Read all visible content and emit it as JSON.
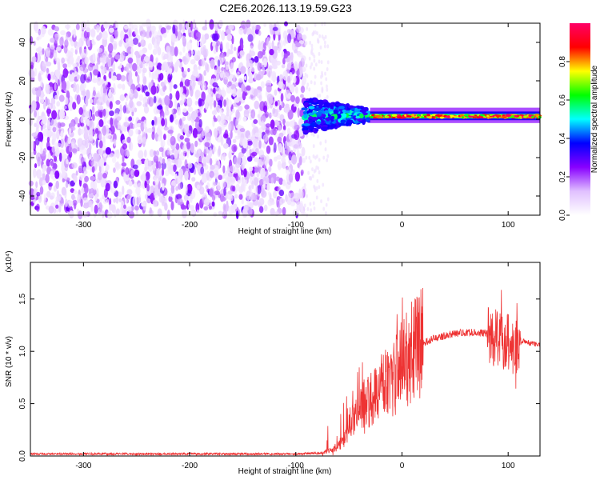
{
  "title": "C2E6.2026.113.19.59.G23",
  "chart_data": [
    {
      "type": "heatmap",
      "xlabel": "Height of straight line (km)",
      "ylabel": "Frequency (Hz)",
      "xlim": [
        -350,
        130
      ],
      "ylim": [
        -50,
        50
      ],
      "xticks": [
        -300,
        -200,
        -100,
        0,
        100
      ],
      "yticks": [
        -40,
        -20,
        0,
        20,
        40
      ],
      "colorbar": {
        "label": "Normalized spectral amplitude",
        "range": [
          0.0,
          1.0
        ],
        "ticks": [
          0.0,
          0.2,
          0.4,
          0.6,
          0.8
        ],
        "tick_labels": [
          "0.0",
          "0.2",
          "0.4",
          "0.6",
          "0.8"
        ],
        "colormap": [
          "#ffffff",
          "#e0c0ff",
          "#8800ff",
          "#0000ff",
          "#00ffff",
          "#00ff00",
          "#ffff00",
          "#ff0000",
          "#ff0066"
        ]
      },
      "regions": [
        {
          "x": [
            -350,
            -92
          ],
          "freq": [
            -50,
            50
          ],
          "amplitude": [
            0.05,
            0.2
          ],
          "pattern": "noise"
        },
        {
          "x": [
            -92,
            -30
          ],
          "freq": [
            -10,
            10
          ],
          "amplitude": [
            0.3,
            0.65
          ],
          "pattern": "broadening signal"
        },
        {
          "x": [
            -30,
            130
          ],
          "freq": [
            -2,
            6
          ],
          "center_freq": 1.5,
          "amplitude": [
            0.6,
            1.0
          ],
          "pattern": "narrow signal"
        }
      ]
    },
    {
      "type": "line",
      "xlabel": "Height of straight line (km)",
      "ylabel": "SNR (10 * v/v)",
      "multiplier": "(x10⁴)",
      "xlim": [
        -350,
        130
      ],
      "ylim": [
        0,
        1.85
      ],
      "xticks": [
        -300,
        -200,
        -100,
        0,
        100
      ],
      "yticks": [
        0.0,
        0.5,
        1.0,
        1.5
      ],
      "ytick_labels": [
        "0.0",
        "0.5",
        "1.0",
        "1.5"
      ],
      "color": "#ee3333",
      "series": [
        {
          "x": [
            -350,
            -250,
            -150,
            -100,
            -75,
            -65,
            -55,
            -50,
            -45,
            -40,
            -35,
            -30,
            -25,
            -20,
            -15,
            -10,
            -5,
            0,
            5,
            10,
            15,
            20,
            30,
            40,
            50,
            60,
            70,
            80,
            85,
            90,
            95,
            100,
            105,
            110,
            115,
            120,
            125,
            130
          ],
          "values": [
            0.02,
            0.02,
            0.02,
            0.02,
            0.03,
            0.06,
            0.15,
            0.3,
            0.35,
            0.45,
            0.5,
            0.55,
            0.6,
            0.65,
            0.72,
            0.7,
            0.8,
            0.9,
            0.92,
            1.0,
            1.05,
            1.08,
            1.12,
            1.15,
            1.17,
            1.18,
            1.18,
            1.17,
            1.15,
            1.12,
            1.1,
            1.15,
            1.0,
            1.05,
            1.1,
            1.08,
            1.07,
            1.06
          ]
        }
      ]
    }
  ]
}
